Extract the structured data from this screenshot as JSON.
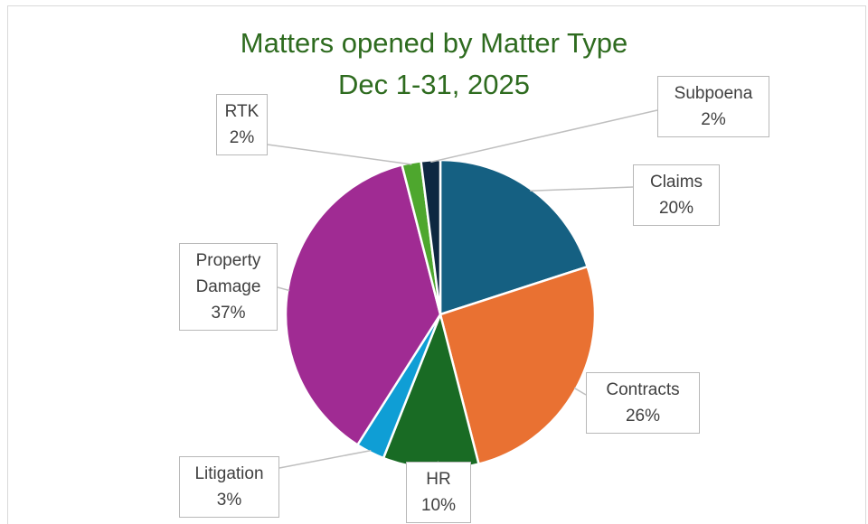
{
  "chart_data": {
    "type": "pie",
    "title": "Matters opened by Matter Type",
    "subtitle": "Dec 1-31, 2025",
    "categories": [
      "Claims",
      "Contracts",
      "HR",
      "Litigation",
      "Property Damage",
      "RTK",
      "Subpoena"
    ],
    "values": [
      20,
      26,
      10,
      3,
      37,
      2,
      2
    ],
    "value_labels": [
      "20%",
      "26%",
      "10%",
      "3%",
      "37%",
      "2%",
      "2%"
    ],
    "colors": [
      "#156082",
      "#e97132",
      "#196b24",
      "#0f9ed5",
      "#a02b93",
      "#4ea72e",
      "#0e2841"
    ]
  }
}
